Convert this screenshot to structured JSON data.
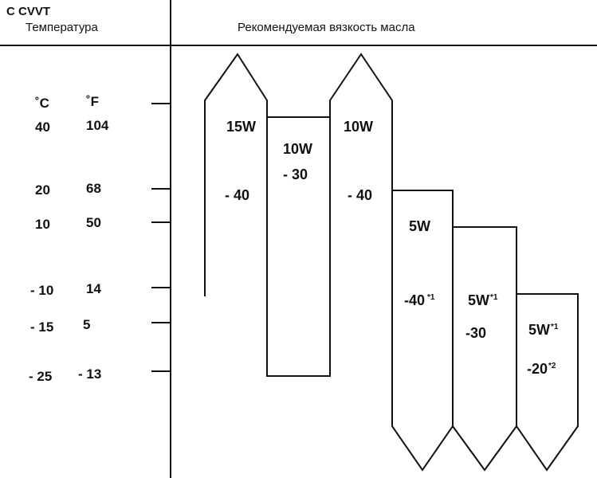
{
  "header": {
    "engine_label": "С CVVT",
    "temperature_label": "Температура",
    "viscosity_label": "Рекомендуемая вязкость масла"
  },
  "units": {
    "celsius": "˚C",
    "fahrenheit": "˚F"
  },
  "temperature_scale": [
    {
      "c": "40",
      "f": "104"
    },
    {
      "c": "20",
      "f": "68"
    },
    {
      "c": "10",
      "f": "50"
    },
    {
      "c": "- 10",
      "f": "14"
    },
    {
      "c": "- 15",
      "f": "5"
    },
    {
      "c": "- 25",
      "f": "- 13"
    }
  ],
  "grades": [
    {
      "top": "15W",
      "bottom": "- 40"
    },
    {
      "top": "10W",
      "bottom": "- 30"
    },
    {
      "top": "10W",
      "bottom": "- 40"
    },
    {
      "top": "5W",
      "bottom": "-40",
      "bottom_sup": "*1"
    },
    {
      "top": "5W",
      "top_sup": "*1",
      "bottom": "-30"
    },
    {
      "top": "5W",
      "top_sup": "*1",
      "bottom": "-20",
      "bottom_sup": "*2"
    }
  ],
  "colors": {
    "line": "#111111",
    "background": "#ffffff"
  }
}
